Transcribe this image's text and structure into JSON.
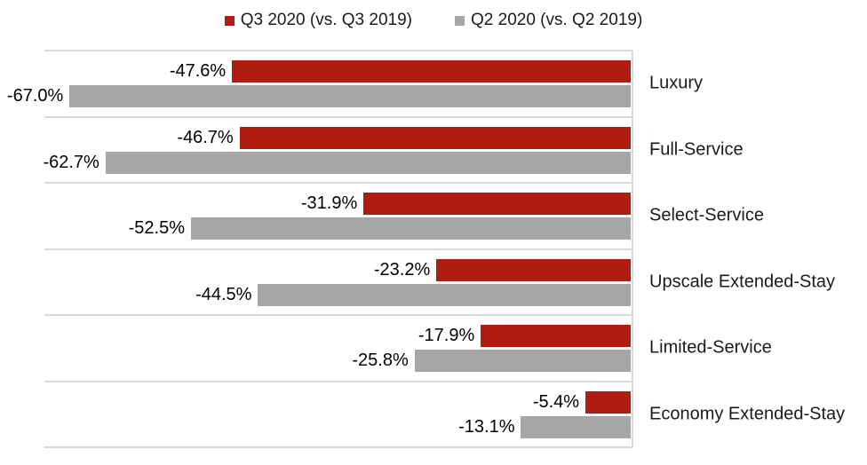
{
  "chart_data": {
    "type": "bar",
    "orientation": "horizontal",
    "title": "",
    "categories": [
      "Luxury",
      "Full-Service",
      "Select-Service",
      "Upscale Extended-Stay",
      "Limited-Service",
      "Economy Extended-Stay"
    ],
    "series": [
      {
        "name": "Q3 2020 (vs. Q3 2019)",
        "color": "#b01d10",
        "values": [
          -47.6,
          -46.7,
          -31.9,
          -23.2,
          -17.9,
          -5.4
        ]
      },
      {
        "name": "Q2 2020 (vs. Q2 2019)",
        "color": "#a6a6a6",
        "values": [
          -67.0,
          -62.7,
          -52.5,
          -44.5,
          -25.8,
          -13.1
        ]
      }
    ],
    "data_label_format": "percent_one_decimal",
    "xlim": [
      -70,
      0
    ],
    "grid": true,
    "legend_position": "top",
    "gridline_color": "#d9d9d9",
    "axis_line_color": "#d9d9d9",
    "label_color": "#000000"
  }
}
